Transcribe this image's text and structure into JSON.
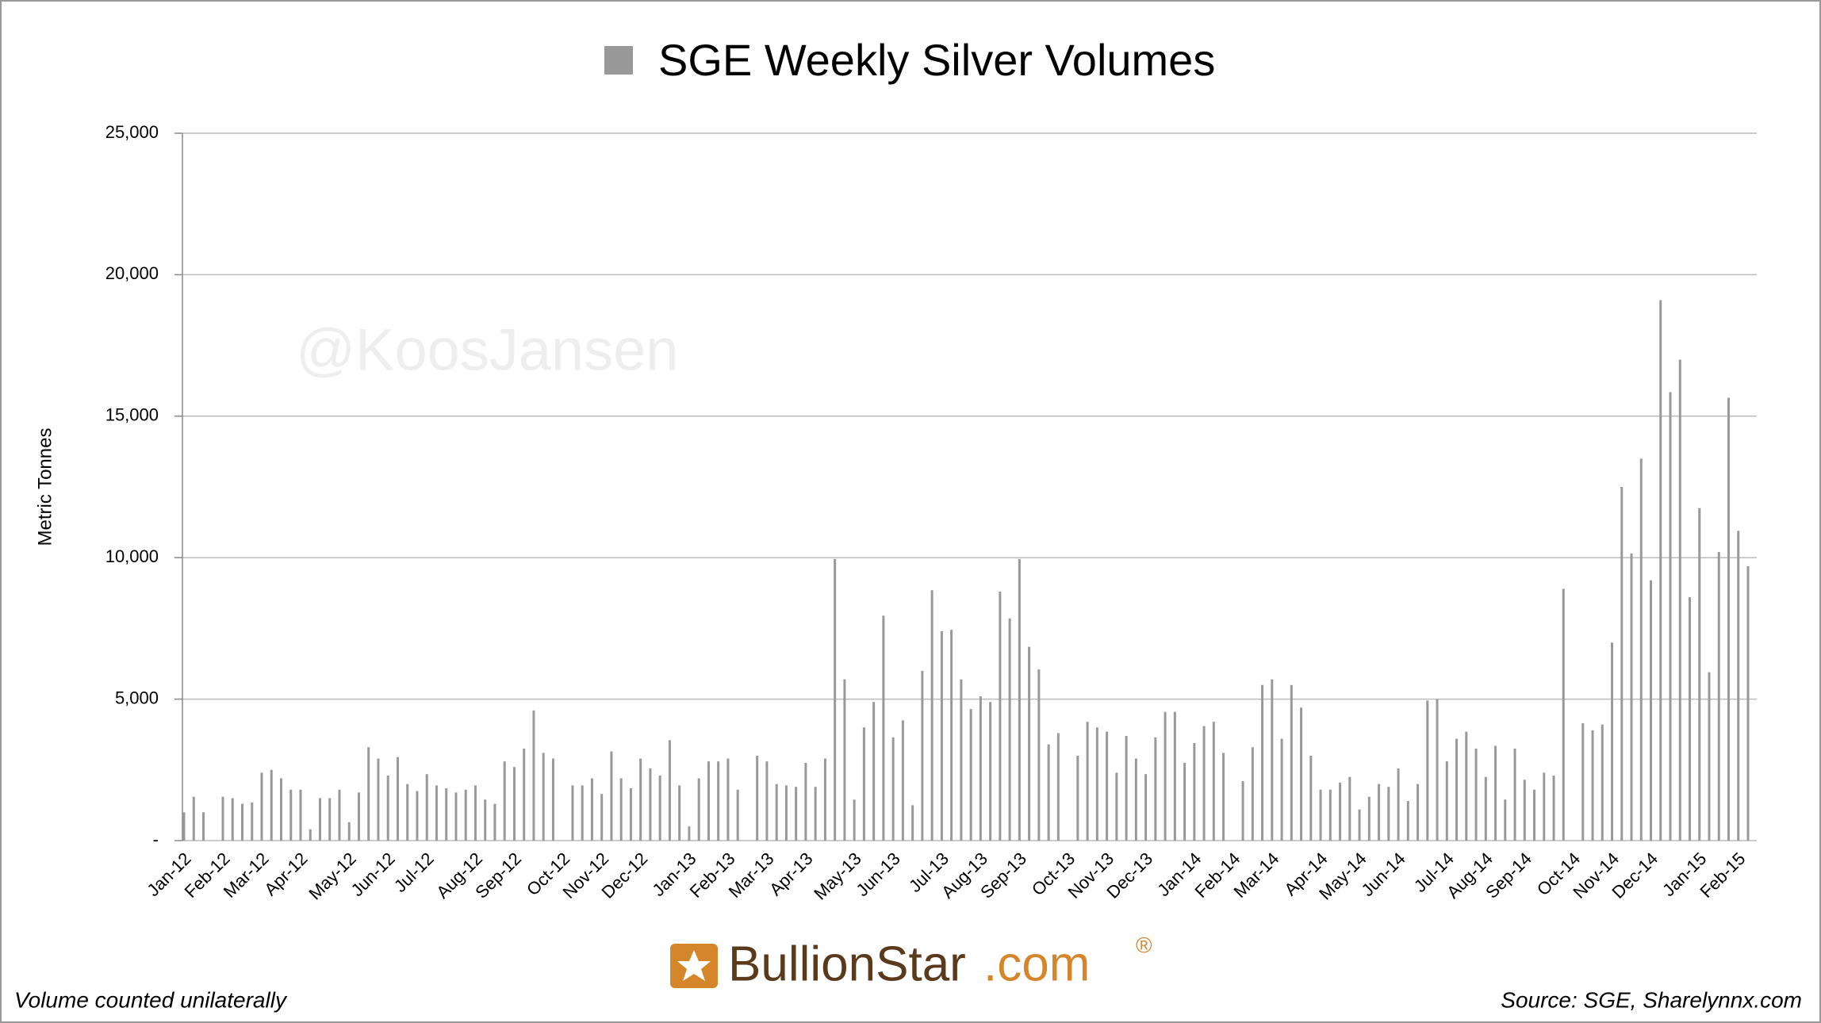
{
  "chart_data": {
    "type": "bar",
    "title": "SGE Weekly Silver Volumes",
    "y_label": "Metric Tonnes",
    "watermark": "@KoosJansen",
    "color": "#999999",
    "grid": true,
    "ylim": [
      0,
      25000
    ],
    "yticks": [
      {
        "value": 0,
        "label": "-"
      },
      {
        "value": 5000,
        "label": "5,000"
      },
      {
        "value": 10000,
        "label": "10,000"
      },
      {
        "value": 15000,
        "label": "15,000"
      },
      {
        "value": 20000,
        "label": "20,000"
      },
      {
        "value": 25000,
        "label": "25,000"
      }
    ],
    "categories": [
      "Jan-12",
      null,
      null,
      null,
      "Feb-12",
      null,
      null,
      null,
      "Mar-12",
      null,
      null,
      null,
      "Apr-12",
      null,
      null,
      null,
      null,
      "May-12",
      null,
      null,
      null,
      "Jun-12",
      null,
      null,
      null,
      "Jul-12",
      null,
      null,
      null,
      null,
      "Aug-12",
      null,
      null,
      null,
      "Sep-12",
      null,
      null,
      null,
      null,
      "Oct-12",
      null,
      null,
      null,
      "Nov-12",
      null,
      null,
      null,
      "Dec-12",
      null,
      null,
      null,
      null,
      "Jan-13",
      null,
      null,
      null,
      "Feb-13",
      null,
      null,
      null,
      "Mar-13",
      null,
      null,
      null,
      "Apr-13",
      null,
      null,
      null,
      null,
      "May-13",
      null,
      null,
      null,
      "Jun-13",
      null,
      null,
      null,
      null,
      "Jul-13",
      null,
      null,
      null,
      "Aug-13",
      null,
      null,
      null,
      "Sep-13",
      null,
      null,
      null,
      null,
      "Oct-13",
      null,
      null,
      null,
      "Nov-13",
      null,
      null,
      null,
      "Dec-13",
      null,
      null,
      null,
      null,
      "Jan-14",
      null,
      null,
      null,
      "Feb-14",
      null,
      null,
      null,
      "Mar-14",
      null,
      null,
      null,
      null,
      "Apr-14",
      null,
      null,
      null,
      "May-14",
      null,
      null,
      null,
      "Jun-14",
      null,
      null,
      null,
      null,
      "Jul-14",
      null,
      null,
      null,
      "Aug-14",
      null,
      null,
      null,
      "Sep-14",
      null,
      null,
      null,
      null,
      "Oct-14",
      null,
      null,
      null,
      "Nov-14",
      null,
      null,
      null,
      "Dec-14",
      null,
      null,
      null,
      null,
      "Jan-15",
      null,
      null,
      null,
      "Feb-15",
      null
    ],
    "values": [
      1000,
      1550,
      1000,
      null,
      1550,
      1500,
      1300,
      1350,
      2400,
      2500,
      2200,
      1800,
      1800,
      400,
      1500,
      1500,
      1800,
      650,
      1700,
      3300,
      2900,
      2300,
      2950,
      2000,
      1750,
      2350,
      1950,
      1850,
      1700,
      1800,
      1950,
      1450,
      1300,
      2800,
      2600,
      3250,
      4600,
      3100,
      2900,
      null,
      1950,
      1950,
      2200,
      1650,
      3150,
      2200,
      1850,
      2900,
      2550,
      2300,
      3550,
      1950,
      500,
      2200,
      2800,
      2800,
      2900,
      1800,
      null,
      3000,
      2800,
      2000,
      1950,
      1900,
      2750,
      1900,
      2900,
      9950,
      5700,
      1450,
      4000,
      4900,
      7950,
      3650,
      4250,
      1250,
      6000,
      8850,
      7400,
      7450,
      5700,
      4650,
      5100,
      4900,
      8800,
      7850,
      9950,
      6850,
      6050,
      3400,
      3800,
      null,
      3000,
      4200,
      4000,
      3850,
      2400,
      3700,
      2900,
      2350,
      3650,
      4550,
      4550,
      2750,
      3450,
      4050,
      4200,
      3100,
      null,
      2100,
      3300,
      5500,
      5700,
      3600,
      5500,
      4700,
      3000,
      1800,
      1800,
      2050,
      2250,
      1100,
      1550,
      2000,
      1900,
      2550,
      1400,
      2000,
      4950,
      5000,
      2800,
      3600,
      3850,
      3250,
      2250,
      3350,
      1450,
      3250,
      2150,
      1800,
      2400,
      2300,
      8900,
      null,
      4150,
      3900,
      4100,
      7000,
      12500,
      10150,
      13500,
      9200,
      19100,
      15850,
      17000,
      8600,
      11750,
      5950,
      10200,
      15650,
      10950,
      9700
    ]
  },
  "logo": {
    "name": "BullionStar",
    "domain": ".com",
    "mark": "®"
  },
  "footer": {
    "left": "Volume counted unilaterally",
    "right": "Source: SGE, Sharelynnx.com"
  }
}
